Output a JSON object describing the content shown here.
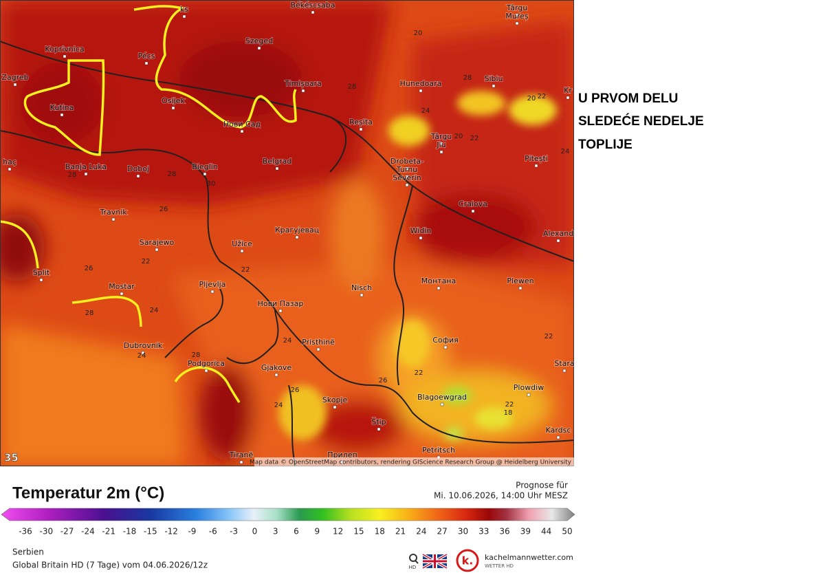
{
  "map": {
    "cities": [
      "Békéscsaba",
      "Târgu",
      "Mureș",
      "ks",
      "Koprivnica",
      "Pécs",
      "Szeged",
      "Zagreb",
      "Osijek",
      "Timișoara",
      "Hunedoara",
      "Sibiu",
      "Kr",
      "Kutina",
      "Нови Сад",
      "Reșita",
      "Târgu",
      "Jiu",
      "haç",
      "Banja Luka",
      "Doboj",
      "Bieglin",
      "Belgrad",
      "Drobeta-",
      "Turnu",
      "Severin",
      "Pitești",
      "Craiova",
      "Travnik",
      "Крагујевац",
      "Widin",
      "Alexand",
      "Sarajewo",
      "Užice",
      "Split",
      "Монтана",
      "Plewen",
      "Mostar",
      "Pljevlja",
      "Nisch",
      "Нови Пазар",
      "Dubrovnik",
      "Pristhinë",
      "София",
      "Podgorica",
      "Gjakove",
      "Stara",
      "Plowdiw",
      "Skopje",
      "Blagoewgrad",
      "Štip",
      "Kardsc",
      "Tiranë",
      "Прилеп",
      "Petritsch"
    ],
    "contour_labels": [
      "20",
      "28",
      "28",
      "22",
      "20",
      "24",
      "20",
      "22",
      "24",
      "28",
      "28",
      "30",
      "26",
      "22",
      "26",
      "22",
      "24",
      "28",
      "24",
      "24",
      "26",
      "24",
      "22",
      "22",
      "26",
      "22",
      "18",
      "28"
    ],
    "corner_value": "35",
    "attribution": "Map data © OpenStreetMap contributors, rendering GIScience Research Group @ Heidelberg University"
  },
  "annotation": {
    "lines": [
      "U PRVOM DELU",
      "SLEDEĆE NEDELJE",
      "TOPLIJE"
    ]
  },
  "legend": {
    "title": "Temperatur 2m (°C)",
    "ticks": [
      -36,
      -30,
      -27,
      -24,
      -21,
      -18,
      -15,
      -12,
      -9,
      -6,
      -3,
      0,
      3,
      6,
      9,
      12,
      15,
      18,
      21,
      24,
      27,
      30,
      33,
      36,
      39,
      44,
      50
    ]
  },
  "forecast": {
    "label": "Prognose für",
    "time": "Mi. 10.06.2026, 14:00 Uhr MESZ"
  },
  "footer": {
    "region": "Serbien",
    "model": "Global Britain HD (7 Tage) vom 04.06.2026/12z",
    "hd": "HD",
    "brand": "kachelmannwetter.com",
    "brand_sub": "WETTER HD"
  }
}
